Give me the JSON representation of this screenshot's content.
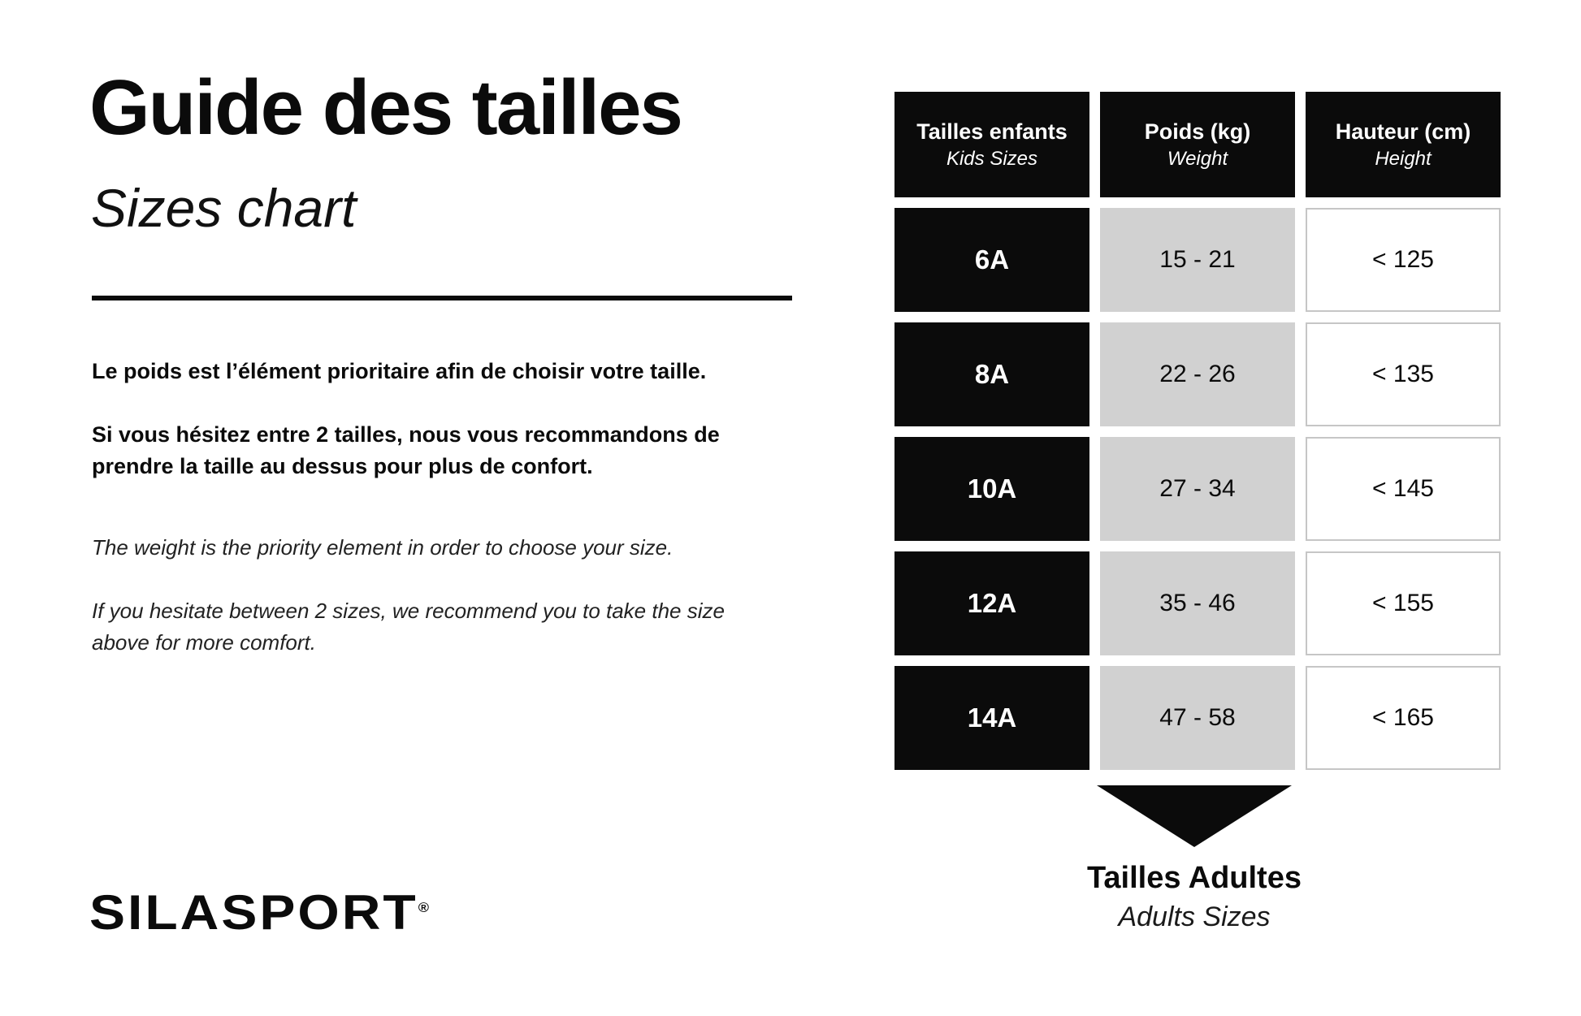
{
  "page": {
    "title_fr": "Guide des tailles",
    "title_en": "Sizes chart"
  },
  "intro": {
    "fr": [
      "Le poids est l’élément prioritaire afin de choisir votre taille.",
      "Si vous hésitez entre 2 tailles, nous vous recommandons de prendre la taille au dessus pour plus de confort."
    ],
    "en": [
      "The weight is the priority element in order to choose your size.",
      "If you hesitate between 2 sizes, we recommend you to take the size above for more comfort."
    ]
  },
  "chart_data": {
    "type": "table",
    "columns": [
      {
        "label_fr": "Tailles enfants",
        "label_en": "Kids Sizes"
      },
      {
        "label_fr": "Poids (kg)",
        "label_en": "Weight"
      },
      {
        "label_fr": "Hauteur (cm)",
        "label_en": "Height"
      }
    ],
    "rows": [
      {
        "size": "6A",
        "weight_kg": "15 - 21",
        "height_cm": "< 125"
      },
      {
        "size": "8A",
        "weight_kg": "22 - 26",
        "height_cm": "< 135"
      },
      {
        "size": "10A",
        "weight_kg": "27 - 34",
        "height_cm": "< 145"
      },
      {
        "size": "12A",
        "weight_kg": "35 - 46",
        "height_cm": "< 155"
      },
      {
        "size": "14A",
        "weight_kg": "47 - 58",
        "height_cm": "< 165"
      }
    ]
  },
  "footer": {
    "adults_fr": "Tailles Adultes",
    "adults_en": "Adults Sizes"
  },
  "logo": {
    "brand": "SILASPORT",
    "registered": "®"
  },
  "colors": {
    "black": "#0b0b0b",
    "gray_cell": "#d1d1d1",
    "white_cell_border": "#c6c6c6"
  }
}
